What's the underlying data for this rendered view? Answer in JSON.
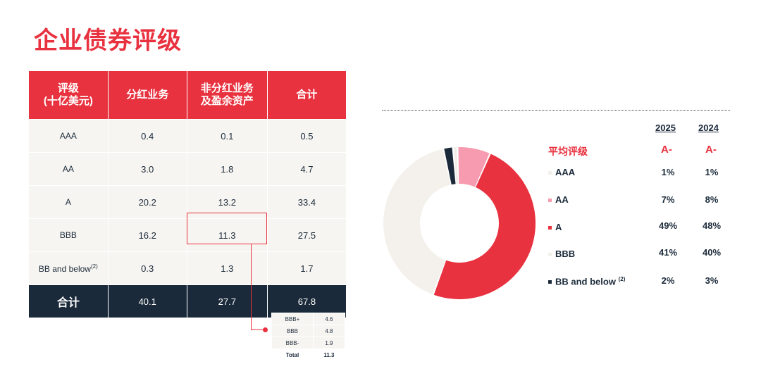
{
  "title": "企业债券评级",
  "table": {
    "headers": [
      "评级\n(十亿美元)",
      "分红业务",
      "非分红业务\n及盈余资产",
      "合计"
    ],
    "rows": [
      {
        "label": "AAA",
        "sup": "",
        "v1": "0.4",
        "v2": "0.1",
        "v3": "0.5"
      },
      {
        "label": "AA",
        "sup": "",
        "v1": "3.0",
        "v2": "1.8",
        "v3": "4.7"
      },
      {
        "label": "A",
        "sup": "",
        "v1": "20.2",
        "v2": "13.2",
        "v3": "33.4"
      },
      {
        "label": "BBB",
        "sup": "",
        "v1": "16.2",
        "v2": "11.3",
        "v3": "27.5"
      },
      {
        "label": "BB and below",
        "sup": "(2)",
        "v1": "0.3",
        "v2": "1.3",
        "v3": "1.7"
      }
    ],
    "total": {
      "label": "合计",
      "v1": "40.1",
      "v2": "27.7",
      "v3": "67.8"
    }
  },
  "breakdown": [
    {
      "label": "BBB+",
      "value": "4.6"
    },
    {
      "label": "BBB",
      "value": "4.8"
    },
    {
      "label": "BBB-",
      "value": "1.9"
    },
    {
      "label": "Total",
      "value": "11.3"
    }
  ],
  "legend": {
    "years": [
      "2025",
      "2024"
    ],
    "avg_label": "平均评级",
    "avg_values": [
      "A-",
      "A-"
    ],
    "items": [
      {
        "label": "AAA",
        "sup": "",
        "v2025": "1%",
        "v2024": "1%",
        "color": "#f2efea"
      },
      {
        "label": "AA",
        "sup": "",
        "v2025": "7%",
        "v2024": "8%",
        "color": "#f79bb0"
      },
      {
        "label": "A",
        "sup": "",
        "v2025": "49%",
        "v2024": "48%",
        "color": "#e8323f"
      },
      {
        "label": "BBB",
        "sup": "",
        "v2025": "41%",
        "v2024": "40%",
        "color": "#f4f1ec"
      },
      {
        "label": "BB and below",
        "sup": "(2)",
        "v2025": "2%",
        "v2024": "3%",
        "color": "#1b2a3a"
      }
    ]
  },
  "chart_data": {
    "type": "pie",
    "categories": [
      "AAA",
      "AA",
      "A",
      "BBB",
      "BB and below"
    ],
    "values": [
      1,
      7,
      49,
      41,
      2
    ],
    "colors": [
      "#f2efea",
      "#f79bb0",
      "#e8323f",
      "#f4f1ec",
      "#1b2a3a"
    ]
  }
}
